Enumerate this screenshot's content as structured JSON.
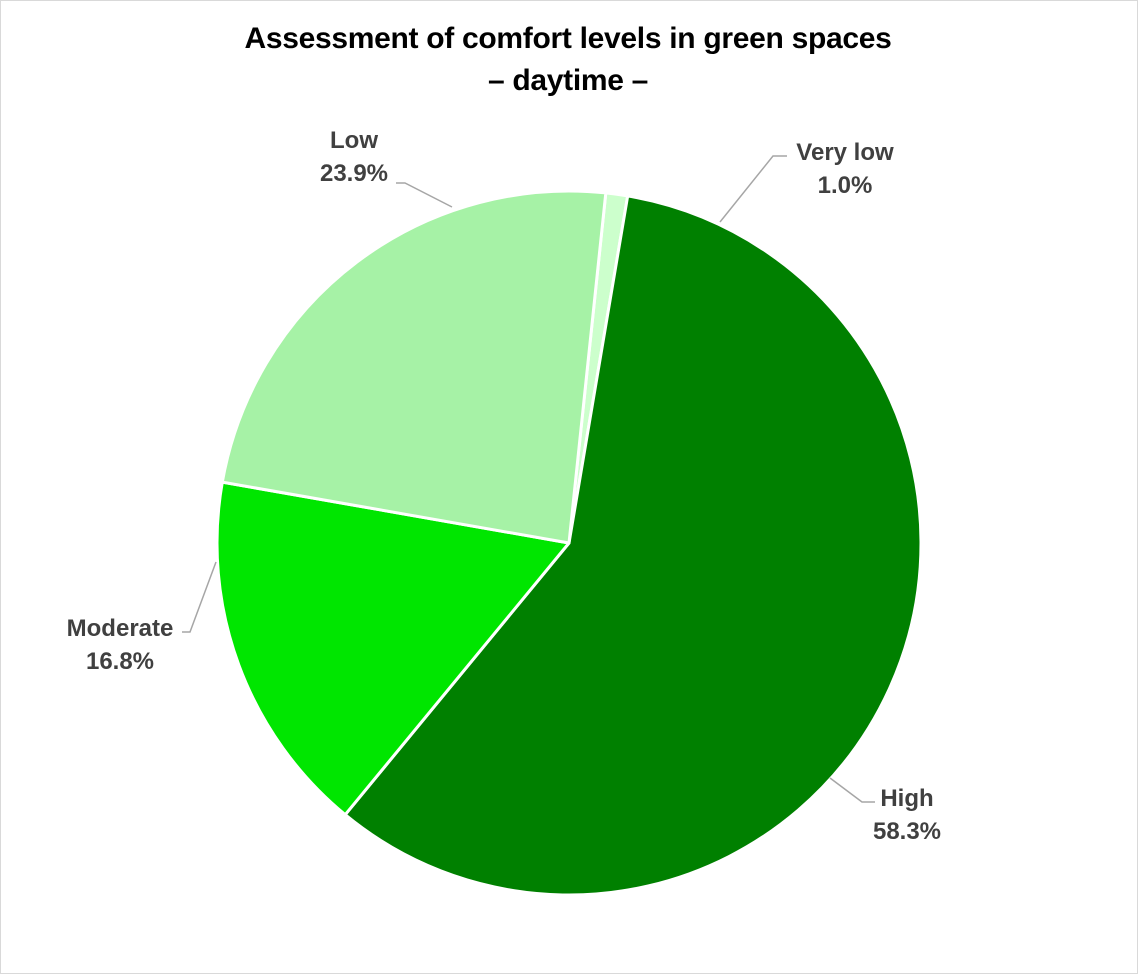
{
  "chart_data": {
    "type": "pie",
    "title_line1": "Assessment of comfort levels in green spaces",
    "title_line2": "– daytime –",
    "slices": [
      {
        "name": "Very low",
        "value": 1.0,
        "label": "1.0%",
        "color": "#ccffcc"
      },
      {
        "name": "High",
        "value": 58.3,
        "label": "58.3%",
        "color": "#008000"
      },
      {
        "name": "Moderate",
        "value": 16.8,
        "label": "16.8%",
        "color": "#00e600"
      },
      {
        "name": "Low",
        "value": 23.9,
        "label": "23.9%",
        "color": "#a6f2a6"
      }
    ],
    "legend": "none",
    "label_style": "category-and-percent-outside-with-leader-lines"
  }
}
